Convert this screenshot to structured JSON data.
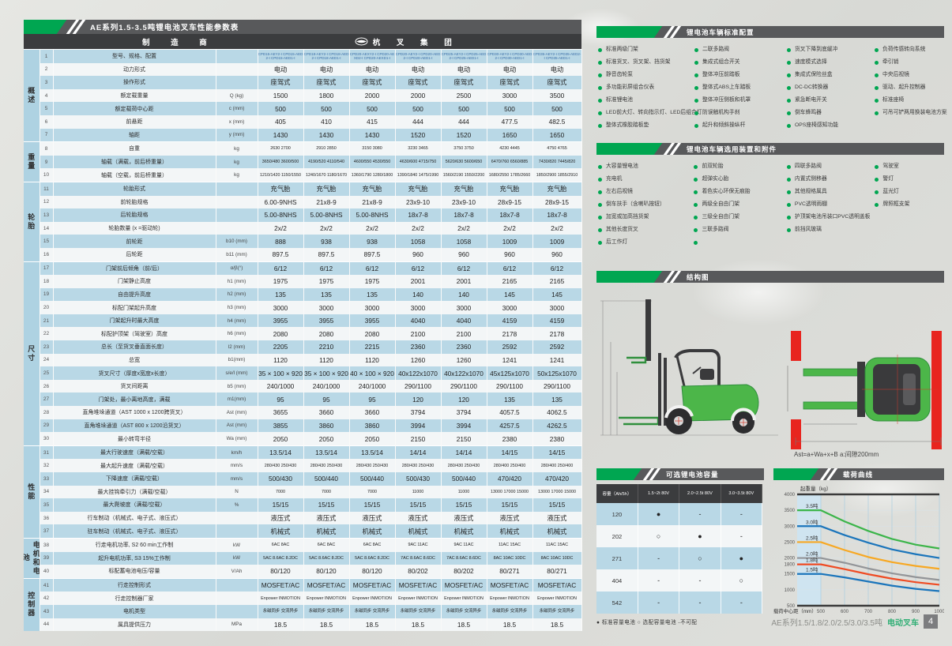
{
  "page": {
    "footer": {
      "series_text": "AE系列1.5/1.8/2.0/2.5/3.0/3.5吨",
      "product_text": "电动叉车",
      "page_number": "4"
    },
    "colors": {
      "accent_green": "#00a651",
      "bar_gray": "#58595b",
      "header_dark": "#3b3c3e",
      "row_blue": "#b9d8e6",
      "row_white": "#f3f6f7",
      "shaded_blue": "#cfe4f0",
      "red_block": "#e8251f"
    }
  },
  "spec_table": {
    "title": "AE系列1.5-3.5吨锂电池叉车性能参数表",
    "manufacturer_label": "制 造 商",
    "brand": "杭 叉 集 团",
    "groups": [
      {
        "name": "概述",
        "count": 7
      },
      {
        "name": "重量",
        "count": 3
      },
      {
        "name": "轮胎",
        "count": 6
      },
      {
        "name": "尺寸",
        "count": 14
      },
      {
        "name": "性能",
        "count": 7
      },
      {
        "name": "电机和电池",
        "count": 3
      },
      {
        "name": "控制器",
        "count": 4
      }
    ],
    "rows": [
      {
        "no": 1,
        "label": "型号、规格、配置",
        "unit": "",
        "tiny": true,
        "values": [
          "CPD15-AEY2-I CPD15-AED2-I CPD15-AED1-I",
          "CPD18-AEY2-I CPD18-AED2-I CPD18-AED1-I",
          "CPD20-AEXY2-I CPD20-AEXD2-I CPD20-AEXD1-I",
          "CPD20-AEY2-I CPD20-AED2-I CPD20-AED1-I",
          "CPD25-AEY2-I CPD25-AED2-I CPD25-AED1-I",
          "CPD30-AEY2-I CPD30-AED2-I CPD30-AED1-I",
          "CPD35-AEY2-I CPD35-AED2-I CPD35-AED1-I"
        ]
      },
      {
        "no": 2,
        "label": "动力形式",
        "unit": "",
        "values": [
          "电动",
          "电动",
          "电动",
          "电动",
          "电动",
          "电动",
          "电动"
        ]
      },
      {
        "no": 3,
        "label": "操作形式",
        "unit": "",
        "values": [
          "座驾式",
          "座驾式",
          "座驾式",
          "座驾式",
          "座驾式",
          "座驾式",
          "座驾式"
        ]
      },
      {
        "no": 4,
        "label": "额定载重量",
        "unit": "Q (kg)",
        "values": [
          "1500",
          "1800",
          "2000",
          "2000",
          "2500",
          "3000",
          "3500"
        ]
      },
      {
        "no": 5,
        "label": "额定载荷中心距",
        "unit": "c (mm)",
        "values": [
          "500",
          "500",
          "500",
          "500",
          "500",
          "500",
          "500"
        ]
      },
      {
        "no": 6,
        "label": "前悬距",
        "unit": "x (mm)",
        "values": [
          "405",
          "410",
          "415",
          "444",
          "444",
          "477.5",
          "482.5"
        ]
      },
      {
        "no": 7,
        "label": "轴距",
        "unit": "y (mm)",
        "values": [
          "1430",
          "1430",
          "1430",
          "1520",
          "1520",
          "1650",
          "1650"
        ]
      },
      {
        "no": 8,
        "label": "自重",
        "unit": "kg",
        "small": true,
        "values": [
          "2630  2700",
          "2910  2850",
          "3150  3080",
          "3230  3465",
          "3750  3750",
          "4230  4445",
          "4750  4765"
        ]
      },
      {
        "no": 9,
        "label": "轴载（满载，前后桥重量）",
        "unit": "kg",
        "small": true,
        "values": [
          "3650/480  3600/500",
          "4190/520  4110/540",
          "4600/550  4530/550",
          "4630/600  4715/750",
          "5620/630  5600/650",
          "6470/760  6560/885",
          "7430/820  7445/820"
        ]
      },
      {
        "no": 10,
        "label": "轴载（空载，前后桥重量）",
        "unit": "kg",
        "small": true,
        "values": [
          "1210/1420  1150/1550",
          "1240/1670  1180/1670",
          "1360/1790  1280/1800",
          "1390/1840  1475/1990",
          "1560/2190  1550/2200",
          "1680/2550  1785/2660",
          "1850/2900  1855/2910"
        ]
      },
      {
        "no": 11,
        "label": "轮胎形式",
        "unit": "",
        "values": [
          "充气胎",
          "充气胎",
          "充气胎",
          "充气胎",
          "充气胎",
          "充气胎",
          "充气胎"
        ]
      },
      {
        "no": 12,
        "label": "前轮胎规格",
        "unit": "",
        "values": [
          "6.00-9NHS",
          "21x8-9",
          "21x8-9",
          "23x9-10",
          "23x9-10",
          "28x9-15",
          "28x9-15"
        ]
      },
      {
        "no": 13,
        "label": "后轮胎规格",
        "unit": "",
        "values": [
          "5.00-8NHS",
          "5.00-8NHS",
          "5.00-8NHS",
          "18x7-8",
          "18x7-8",
          "18x7-8",
          "18x7-8"
        ]
      },
      {
        "no": 14,
        "label": "轮胎数量 (x =驱动轮)",
        "unit": "",
        "values": [
          "2x/2",
          "2x/2",
          "2x/2",
          "2x/2",
          "2x/2",
          "2x/2",
          "2x/2"
        ]
      },
      {
        "no": 15,
        "label": "前轮距",
        "unit": "b10 (mm)",
        "values": [
          "888",
          "938",
          "938",
          "1058",
          "1058",
          "1009",
          "1009"
        ]
      },
      {
        "no": 16,
        "label": "后轮距",
        "unit": "b11 (mm)",
        "values": [
          "897.5",
          "897.5",
          "897.5",
          "960",
          "960",
          "960",
          "960"
        ]
      },
      {
        "no": 17,
        "label": "门架前后倾角（前/后）",
        "unit": "α/β(°)",
        "values": [
          "6/12",
          "6/12",
          "6/12",
          "6/12",
          "6/12",
          "6/12",
          "6/12"
        ]
      },
      {
        "no": 18,
        "label": "门架静止高度",
        "unit": "h1 (mm)",
        "values": [
          "1975",
          "1975",
          "1975",
          "2001",
          "2001",
          "2165",
          "2165"
        ]
      },
      {
        "no": 19,
        "label": "自由提升高度",
        "unit": "h2 (mm)",
        "values": [
          "135",
          "135",
          "135",
          "140",
          "140",
          "145",
          "145"
        ]
      },
      {
        "no": 20,
        "label": "标配门架起升高度",
        "unit": "h3 (mm)",
        "values": [
          "3000",
          "3000",
          "3000",
          "3000",
          "3000",
          "3000",
          "3000"
        ]
      },
      {
        "no": 21,
        "label": "门架起升时最大高度",
        "unit": "h4 (mm)",
        "values": [
          "3955",
          "3955",
          "3955",
          "4040",
          "4040",
          "4159",
          "4159"
        ]
      },
      {
        "no": 22,
        "label": "标配护顶架（驾驶室）高度",
        "unit": "h6 (mm)",
        "values": [
          "2080",
          "2080",
          "2080",
          "2100",
          "2100",
          "2178",
          "2178"
        ]
      },
      {
        "no": 23,
        "label": "总长（至货叉垂直面长度）",
        "unit": "l2 (mm)",
        "values": [
          "2205",
          "2210",
          "2215",
          "2360",
          "2360",
          "2592",
          "2592"
        ]
      },
      {
        "no": 24,
        "label": "总宽",
        "unit": "b1(mm)",
        "values": [
          "1120",
          "1120",
          "1120",
          "1260",
          "1260",
          "1241",
          "1241"
        ]
      },
      {
        "no": 25,
        "label": "货叉尺寸（厚度x宽度x长度）",
        "unit": "s/e/l (mm)",
        "values": [
          "35 × 100 × 920",
          "35 × 100 × 920",
          "40 × 100 × 920",
          "40x122x1070",
          "40x122x1070",
          "45x125x1070",
          "50x125x1070"
        ]
      },
      {
        "no": 26,
        "label": "货叉间距离",
        "unit": "b5 (mm)",
        "values": [
          "240/1000",
          "240/1000",
          "240/1000",
          "290/1100",
          "290/1100",
          "290/1100",
          "290/1100"
        ]
      },
      {
        "no": 27,
        "label": "门架处，最小离地高度，满载",
        "unit": "m1(mm)",
        "values": [
          "95",
          "95",
          "95",
          "120",
          "120",
          "135",
          "135"
        ]
      },
      {
        "no": 28,
        "label": "直角堆垛通道（AST 1000 x 1200跨货叉）",
        "unit": "Ast (mm)",
        "values": [
          "3655",
          "3660",
          "3660",
          "3794",
          "3794",
          "4057.5",
          "4062.5"
        ]
      },
      {
        "no": 29,
        "label": "直角堆垛通道（AST 800 x 1200沿货叉）",
        "unit": "Ast (mm)",
        "values": [
          "3855",
          "3860",
          "3860",
          "3994",
          "3994",
          "4257.5",
          "4262.5"
        ]
      },
      {
        "no": 30,
        "label": "最小转弯半径",
        "unit": "Wa (mm)",
        "values": [
          "2050",
          "2050",
          "2050",
          "2150",
          "2150",
          "2380",
          "2380"
        ]
      },
      {
        "no": 31,
        "label": "最大行驶速度（满载/空载）",
        "unit": "km/h",
        "values": [
          "13.5/14",
          "13.5/14",
          "13.5/14",
          "14/14",
          "14/14",
          "14/15",
          "14/15"
        ]
      },
      {
        "no": 32,
        "label": "最大起升速度（满载/空载）",
        "unit": "mm/s",
        "small": true,
        "values": [
          "280/430  250/430",
          "280/430  250/430",
          "280/430  250/430",
          "280/430  250/430",
          "280/430  250/430",
          "280/400  250/400",
          "280/400  250/400"
        ]
      },
      {
        "no": 33,
        "label": "下降速度（满载/空载）",
        "unit": "mm/s",
        "values": [
          "500/430",
          "500/440",
          "500/440",
          "500/430",
          "500/440",
          "470/420",
          "470/420"
        ]
      },
      {
        "no": 34,
        "label": "最大挂钩牵引力（满载/空载）",
        "unit": "N",
        "small": true,
        "values": [
          "7000",
          "7000",
          "7000",
          "11000",
          "11000",
          "13000 17000 15000",
          "13000 17000 15000"
        ]
      },
      {
        "no": 35,
        "label": "最大爬坡度（满载/空载）",
        "unit": "%",
        "values": [
          "15/15",
          "15/15",
          "15/15",
          "15/15",
          "15/15",
          "15/15",
          "15/15"
        ]
      },
      {
        "no": 36,
        "label": "行车制动（机械式、电子式、液压式）",
        "unit": "",
        "values": [
          "液压式",
          "液压式",
          "液压式",
          "液压式",
          "液压式",
          "液压式",
          "液压式"
        ]
      },
      {
        "no": 37,
        "label": "驻车制动（机械式、电子式、液压式）",
        "unit": "",
        "values": [
          "机械式",
          "机械式",
          "机械式",
          "机械式",
          "机械式",
          "机械式",
          "机械式"
        ]
      },
      {
        "no": 38,
        "label": "行走电机功率, S2 60 min工作制",
        "unit": "kW",
        "small": true,
        "values": [
          "6AC  8AC",
          "6AC  8AC",
          "6AC  8AC",
          "9AC  11AC",
          "9AC  11AC",
          "11AC  15AC",
          "11AC  15AC"
        ]
      },
      {
        "no": 39,
        "label": "起升电机功率, S3 15%工作制",
        "unit": "kW",
        "small": true,
        "values": [
          "5AC 8.6AC 8.2DC",
          "5AC 8.6AC 8.2DC",
          "5AC 8.6AC 8.2DC",
          "7AC 8.6AC 8.6DC",
          "7AC 8.6AC 8.6DC",
          "8AC 10AC 10DC",
          "8AC 10AC 10DC"
        ]
      },
      {
        "no": 40,
        "label": "标配蓄电池电压/容量",
        "unit": "V/Ah",
        "values": [
          "80/120",
          "80/120",
          "80/120",
          "80/202",
          "80/202",
          "80/271",
          "80/271"
        ]
      },
      {
        "no": 41,
        "label": "行走控制形式",
        "unit": "",
        "values": [
          "MOSFET/AC",
          "MOSFET/AC",
          "MOSFET/AC",
          "MOSFET/AC",
          "MOSFET/AC",
          "MOSFET/AC",
          "MOSFET/AC"
        ]
      },
      {
        "no": 42,
        "label": "行走控制器厂家",
        "unit": "",
        "small": true,
        "values": [
          "Enpower  INMOTION",
          "Enpower  INMOTION",
          "Enpower  INMOTION",
          "Enpower  INMOTION",
          "Enpower  INMOTION",
          "Enpower  INMOTION",
          "Enpower  INMOTION"
        ]
      },
      {
        "no": 43,
        "label": "电机类型",
        "unit": "",
        "small": true,
        "values": [
          "永磁同步  交流异步",
          "永磁同步  交流异步",
          "永磁同步  交流异步",
          "永磁同步  交流异步",
          "永磁同步  交流异步",
          "永磁同步  交流异步",
          "永磁同步  交流异步"
        ]
      },
      {
        "no": 44,
        "label": "属具提供压力",
        "unit": "MPa",
        "values": [
          "18.5",
          "18.5",
          "18.5",
          "18.5",
          "18.5",
          "18.5",
          "18.5"
        ]
      }
    ]
  },
  "standard_config": {
    "title": "锂电池车辆标准配置",
    "columns": [
      [
        "标准两级门架",
        "标准货叉、货叉架、挡货架",
        "静音齿轮泵",
        "多功能彩屏组合仪表",
        "标准锂电池",
        "LED前大灯、转向指示灯、LED后组合灯",
        "整体式橡胶踏板垫"
      ],
      [
        "二联多路阀",
        "集成式组合开关",
        "整体冲压前踏板",
        "整体式ABS上车踏板",
        "整体冲压侧板和机罩",
        "防误触机构手刹",
        "起升和倾斜操纵杆"
      ],
      [
        "货叉下降到底缓冲",
        "速度模式选择",
        "集成式保险丝盒",
        "DC-DC转换器",
        "紧急断电开关",
        "倒车蜂鸣器",
        "OPS座椅感知功能"
      ],
      [
        "负荷传感转向系统",
        "牵引销",
        "中央后视镜",
        "驱动、起升控制器",
        "标准座椅",
        "可吊可铲两用换装电池方案"
      ]
    ]
  },
  "optional_config": {
    "title": "锂电池车辆选用装置和附件",
    "columns": [
      [
        "大容量锂电池",
        "充电机",
        "左右后视镜",
        "倒车扶手（含喇叭按钮）",
        "加宽或加高挡货架",
        "其他长度货叉",
        "后工作灯"
      ],
      [
        "前双轮胎",
        "超弹实心胎",
        "着色实心环保无痕胎",
        "两级全自由门架",
        "三级全自由门架",
        "三联多路阀",
        ""
      ],
      [
        "四联多路阀",
        "内置式侧移器",
        "其他规格属具",
        "PVC透明雨棚",
        "护顶架电池吊装口PVC透明盖板",
        "前挡风玻璃"
      ],
      [
        "驾驶室",
        "警灯",
        "蓝光灯",
        "牌照框支架"
      ]
    ]
  },
  "structure": {
    "title": "结构图",
    "annotation": "Ast=a+Wa+x+B  a:间隙200mm"
  },
  "battery_table": {
    "title": "可选锂电池容量",
    "headers": [
      "容量（Ah/5h）",
      "1.5~2t 80V",
      "2.0~2.5t 80V",
      "3.0~3.5t 80V"
    ],
    "rows": [
      {
        "capacity": "120",
        "cells": [
          "●",
          "-",
          "-"
        ]
      },
      {
        "capacity": "202",
        "cells": [
          "○",
          "●",
          "-"
        ]
      },
      {
        "capacity": "271",
        "cells": [
          "-",
          "○",
          "●"
        ]
      },
      {
        "capacity": "404",
        "cells": [
          "-",
          "-",
          "○"
        ]
      },
      {
        "capacity": "542",
        "cells": [
          "-",
          "-",
          "-"
        ]
      }
    ],
    "legend": "● 标准容量电池  ○ 选配容量电池  -不可配"
  },
  "chart_data": {
    "type": "line",
    "title": "载荷曲线",
    "ylabel": "起重量（kg）",
    "xlabel": "载荷中心距（mm）",
    "xlim": [
      400,
      1000
    ],
    "ylim": [
      500,
      4000
    ],
    "x_ticks": [
      500,
      600,
      700,
      800,
      900,
      1000
    ],
    "y_ticks": [
      500,
      1000,
      1500,
      1800,
      2000,
      2500,
      3000,
      3500,
      4000
    ],
    "shaded_region_x": [
      400,
      500
    ],
    "grid": true,
    "x": [
      400,
      500,
      600,
      700,
      800,
      900,
      1000
    ],
    "series": [
      {
        "name": "3.5吨",
        "color": "#3cb54a",
        "values": [
          3500,
          3500,
          3150,
          2850,
          2600,
          2420,
          2300
        ]
      },
      {
        "name": "3.0吨",
        "color": "#1b75bb",
        "values": [
          3000,
          3000,
          2720,
          2480,
          2270,
          2120,
          2000
        ]
      },
      {
        "name": "2.5吨",
        "color": "#f7a823",
        "values": [
          2500,
          2500,
          2250,
          2030,
          1870,
          1750,
          1660
        ]
      },
      {
        "name": "2.0吨",
        "color": "#939598",
        "values": [
          2000,
          2000,
          1850,
          1670,
          1520,
          1400,
          1310
        ]
      },
      {
        "name": "1.8吨",
        "color": "#ef4b23",
        "values": [
          1800,
          1800,
          1650,
          1490,
          1350,
          1240,
          1160
        ]
      },
      {
        "name": "1.5吨",
        "color": "#1b75bb",
        "values": [
          1500,
          1500,
          1390,
          1260,
          1130,
          1030,
          960
        ]
      }
    ]
  }
}
